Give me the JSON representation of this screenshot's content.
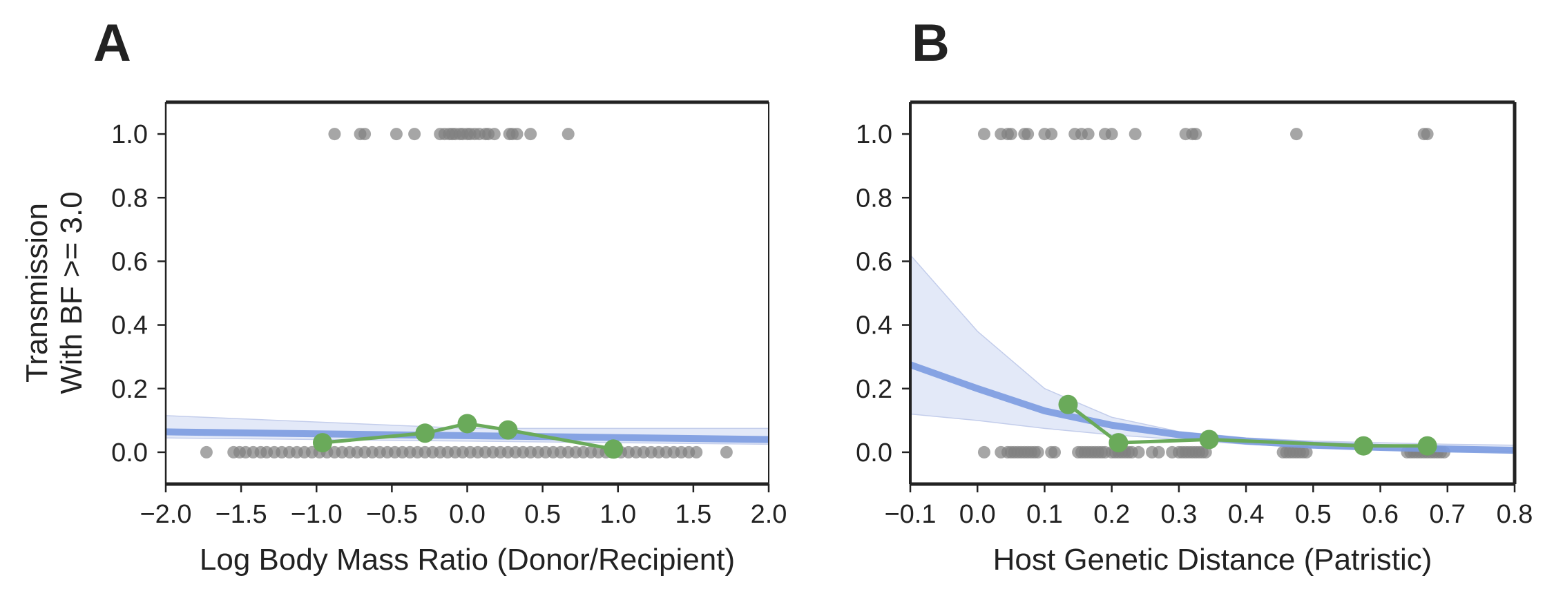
{
  "colors": {
    "scatter": "#808080",
    "binned": "#6aaa5a",
    "fit": "#7b9be0",
    "band": "#e3e9f8",
    "axis": "#222222"
  },
  "y_label_lines": [
    "Transmission",
    "With BF >= 3.0"
  ],
  "chart_data": [
    {
      "panel": "A",
      "type": "scatter",
      "xlabel": "Log Body Mass Ratio (Donor/Recipient)",
      "xlim": [
        -2.0,
        2.0
      ],
      "ylim": [
        -0.1,
        1.1
      ],
      "xticks": [
        "−2.0",
        "−1.5",
        "−1.0",
        "−0.5",
        "0.0",
        "0.5",
        "1.0",
        "1.5",
        "2.0"
      ],
      "yticks": [
        "0.0",
        "0.2",
        "0.4",
        "0.6",
        "0.8",
        "1.0"
      ],
      "points_y1": [
        -0.88,
        -0.71,
        -0.68,
        -0.47,
        -0.35,
        -0.18,
        -0.15,
        -0.12,
        -0.1,
        -0.08,
        -0.05,
        -0.03,
        0.0,
        0.02,
        0.05,
        0.08,
        0.12,
        0.14,
        0.18,
        0.28,
        0.3,
        0.33,
        0.42,
        0.67
      ],
      "points_y0": [
        -1.73,
        -1.55,
        -1.51,
        -1.47,
        -1.42,
        -1.37,
        -1.33,
        -1.28,
        -1.23,
        -1.18,
        -1.13,
        -1.08,
        -1.03,
        -0.98,
        -0.93,
        -0.88,
        -0.83,
        -0.78,
        -0.73,
        -0.68,
        -0.63,
        -0.58,
        -0.53,
        -0.48,
        -0.43,
        -0.38,
        -0.33,
        -0.28,
        -0.23,
        -0.18,
        -0.13,
        -0.08,
        -0.03,
        0.02,
        0.07,
        0.12,
        0.17,
        0.22,
        0.27,
        0.32,
        0.37,
        0.42,
        0.47,
        0.52,
        0.57,
        0.62,
        0.67,
        0.72,
        0.77,
        0.82,
        0.87,
        0.92,
        0.97,
        1.02,
        1.07,
        1.12,
        1.17,
        1.22,
        1.27,
        1.32,
        1.37,
        1.42,
        1.47,
        1.52,
        1.72
      ],
      "binned": {
        "x": [
          -0.96,
          -0.28,
          0.0,
          0.27,
          0.97
        ],
        "y": [
          0.03,
          0.06,
          0.09,
          0.07,
          0.01
        ]
      },
      "fit": {
        "x": [
          -2.0,
          2.0
        ],
        "y": [
          0.064,
          0.04
        ]
      },
      "band": {
        "x": [
          -2.0,
          0.0,
          2.0
        ],
        "upper": [
          0.115,
          0.075,
          0.075
        ],
        "lower": [
          0.045,
          0.035,
          0.025
        ]
      }
    },
    {
      "panel": "B",
      "type": "scatter",
      "xlabel": "Host Genetic Distance (Patristic)",
      "xlim": [
        -0.1,
        0.8
      ],
      "ylim": [
        -0.1,
        1.1
      ],
      "xticks": [
        "−0.1",
        "0.0",
        "0.1",
        "0.2",
        "0.3",
        "0.4",
        "0.5",
        "0.6",
        "0.7",
        "0.8"
      ],
      "yticks": [
        "0.0",
        "0.2",
        "0.4",
        "0.6",
        "0.8",
        "1.0"
      ],
      "points_y1": [
        0.01,
        0.035,
        0.045,
        0.05,
        0.07,
        0.075,
        0.1,
        0.11,
        0.145,
        0.155,
        0.165,
        0.19,
        0.2,
        0.235,
        0.31,
        0.32,
        0.325,
        0.475,
        0.665,
        0.67
      ],
      "points_y0": [
        0.01,
        0.035,
        0.045,
        0.05,
        0.055,
        0.06,
        0.065,
        0.07,
        0.075,
        0.08,
        0.085,
        0.09,
        0.11,
        0.115,
        0.15,
        0.155,
        0.16,
        0.165,
        0.17,
        0.175,
        0.18,
        0.185,
        0.19,
        0.2,
        0.205,
        0.21,
        0.215,
        0.22,
        0.225,
        0.23,
        0.24,
        0.26,
        0.27,
        0.29,
        0.3,
        0.305,
        0.31,
        0.315,
        0.32,
        0.325,
        0.33,
        0.335,
        0.34,
        0.455,
        0.46,
        0.465,
        0.47,
        0.475,
        0.48,
        0.485,
        0.49,
        0.64,
        0.645,
        0.65,
        0.655,
        0.66,
        0.665,
        0.67,
        0.675,
        0.68,
        0.685,
        0.69,
        0.695
      ],
      "binned": {
        "x": [
          0.135,
          0.21,
          0.345,
          0.575,
          0.67
        ],
        "y": [
          0.15,
          0.03,
          0.04,
          0.02,
          0.02
        ]
      },
      "fit": {
        "x": [
          -0.1,
          0.0,
          0.1,
          0.2,
          0.3,
          0.4,
          0.5,
          0.6,
          0.7,
          0.8
        ],
        "y": [
          0.275,
          0.2,
          0.13,
          0.085,
          0.055,
          0.035,
          0.022,
          0.015,
          0.01,
          0.006
        ]
      },
      "band": {
        "x": [
          -0.1,
          0.0,
          0.1,
          0.2,
          0.3,
          0.4,
          0.5,
          0.6,
          0.7,
          0.8
        ],
        "upper": [
          0.62,
          0.38,
          0.2,
          0.11,
          0.065,
          0.045,
          0.035,
          0.03,
          0.025,
          0.022
        ],
        "lower": [
          0.12,
          0.1,
          0.075,
          0.055,
          0.04,
          0.025,
          0.015,
          0.008,
          0.004,
          0.002
        ]
      }
    }
  ]
}
